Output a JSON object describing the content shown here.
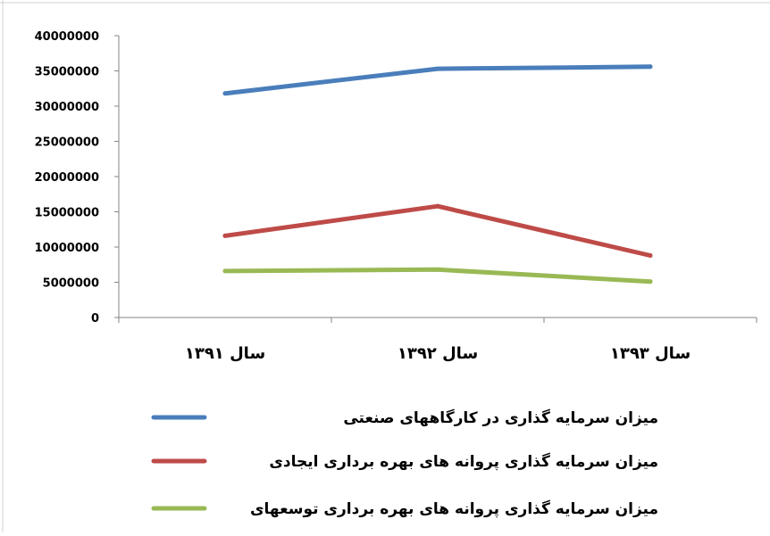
{
  "chart_data": {
    "type": "line",
    "categories": [
      "سال ۱۳۹۱",
      "سال ۱۳۹۲",
      "سال ۱۳۹۳"
    ],
    "series": [
      {
        "name": "میزان سرمایه گذاری در کارگاههای صنعتی",
        "color": "#4a7ebb",
        "values": [
          31800000,
          35300000,
          35600000
        ]
      },
      {
        "name": "میزان سرمایه گذاری پروانه های بهره برداری ایجادی",
        "color": "#be4b48",
        "values": [
          11600000,
          15800000,
          8800000
        ]
      },
      {
        "name": "میزان سرمایه گذاری پروانه های بهره برداری توسعهای",
        "color": "#98b954",
        "values": [
          6600000,
          6800000,
          5100000
        ]
      }
    ],
    "yticks": [
      "0",
      "5000000",
      "10000000",
      "15000000",
      "20000000",
      "25000000",
      "30000000",
      "35000000",
      "40000000"
    ],
    "ylim": [
      0,
      40000000
    ],
    "title": "",
    "xlabel": "",
    "ylabel": "",
    "grid": false,
    "legend_position": "bottom"
  }
}
